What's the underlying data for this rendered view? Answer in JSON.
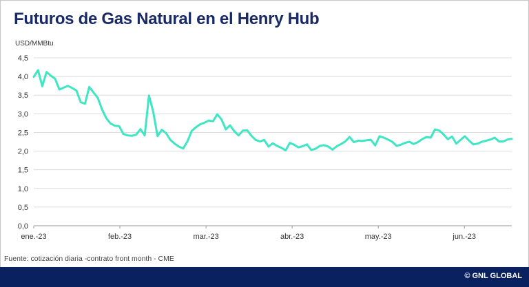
{
  "title": "Futuros de Gas Natural en el Henry Hub",
  "source": "Fuente: cotización diaria -contrato front month - CME",
  "brand": "© GNL GLOBAL",
  "chart_data": {
    "type": "line",
    "ylabel": "USD/MMBtu",
    "ylim": [
      0,
      4.5
    ],
    "yticks": [
      "0,0",
      "0,5",
      "1,0",
      "1,5",
      "2,0",
      "2,5",
      "3,0",
      "3,5",
      "4,0",
      "4,5"
    ],
    "xticks": [
      "ene.-23",
      "feb.-23",
      "mar.-23",
      "abr.-23",
      "may.-23",
      "jun.-23"
    ],
    "grid": true,
    "color": "#3ee6c4",
    "series": [
      {
        "values": [
          3.99,
          4.17,
          3.74,
          4.12,
          4.02,
          3.94,
          3.65,
          3.7,
          3.75,
          3.69,
          3.62,
          3.31,
          3.27,
          3.72,
          3.57,
          3.43,
          3.12,
          2.88,
          2.74,
          2.68,
          2.67,
          2.46,
          2.42,
          2.41,
          2.44,
          2.59,
          2.42,
          3.49,
          3.05,
          2.4,
          2.57,
          2.48,
          2.3,
          2.2,
          2.12,
          2.07,
          2.26,
          2.54,
          2.64,
          2.72,
          2.76,
          2.82,
          2.8,
          2.99,
          2.85,
          2.58,
          2.69,
          2.53,
          2.42,
          2.55,
          2.56,
          2.41,
          2.3,
          2.26,
          2.3,
          2.12,
          2.21,
          2.14,
          2.09,
          2.02,
          2.22,
          2.17,
          2.1,
          2.13,
          2.18,
          2.03,
          2.06,
          2.14,
          2.16,
          2.12,
          2.04,
          2.13,
          2.19,
          2.26,
          2.38,
          2.24,
          2.28,
          2.27,
          2.29,
          2.3,
          2.15,
          2.4,
          2.36,
          2.31,
          2.25,
          2.14,
          2.17,
          2.22,
          2.25,
          2.19,
          2.24,
          2.32,
          2.38,
          2.36,
          2.58,
          2.55,
          2.45,
          2.32,
          2.39,
          2.2,
          2.3,
          2.4,
          2.28,
          2.18,
          2.2,
          2.25,
          2.28,
          2.31,
          2.36,
          2.26,
          2.26,
          2.31,
          2.33
        ]
      }
    ]
  }
}
